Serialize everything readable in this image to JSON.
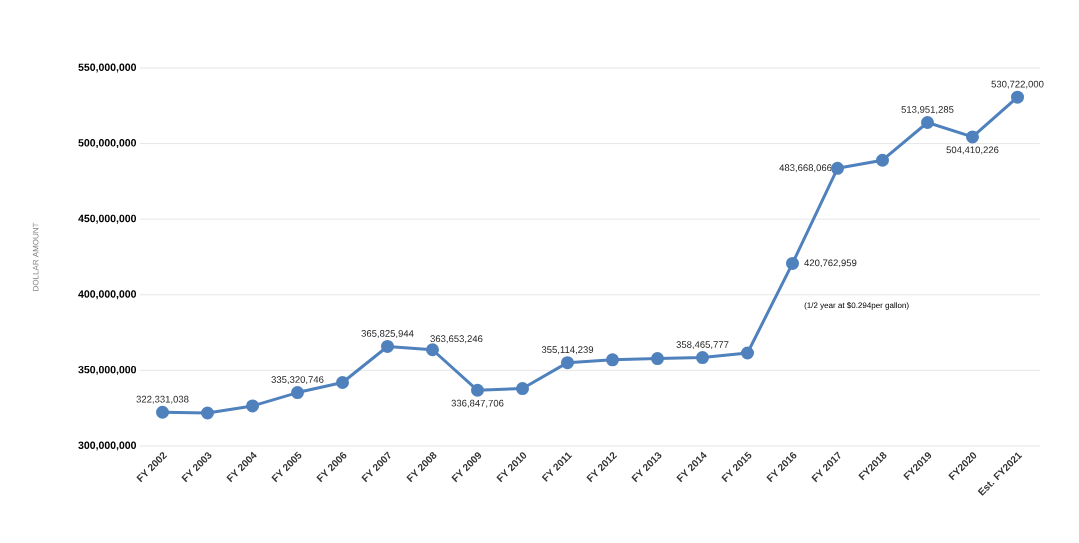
{
  "chart_data": {
    "type": "line",
    "ylabel": "DOLLAR AMOUNT",
    "categories": [
      "FY 2002",
      "FY 2003",
      "FY 2004",
      "FY 2005",
      "FY 2006",
      "FY 2007",
      "FY 2008",
      "FY 2009",
      "FY 2010",
      "FY 2011",
      "FY 2012",
      "FY 2013",
      "FY 2014",
      "FY 2015",
      "FY 2016",
      "FY 2017",
      "FY2018",
      "FY2019",
      "FY2020",
      "Est. FY2021"
    ],
    "values": [
      322331038,
      321800000,
      326500000,
      335320746,
      342000000,
      365825944,
      363653246,
      336847706,
      338000000,
      355114239,
      357000000,
      357800000,
      358465777,
      361500000,
      420762959,
      483668066,
      489000000,
      513951285,
      504410226,
      530722000
    ],
    "value_labels": [
      "322,331,038",
      null,
      null,
      "335,320,746",
      null,
      "365,825,944",
      "363,653,246",
      "336,847,706",
      null,
      "355,114,239",
      null,
      null,
      "358,465,777",
      null,
      "420,762,959",
      "483,668,066",
      null,
      "513,951,285",
      "504,410,226",
      "530,722,000"
    ],
    "color": "#4f81bd",
    "marker": "circle",
    "line_style": "solid",
    "grid": "y",
    "ylim": [
      300000000,
      550000000
    ],
    "yticks": [
      {
        "value": 300000000,
        "label": "300,000,000"
      },
      {
        "value": 350000000,
        "label": "350,000,000"
      },
      {
        "value": 400000000,
        "label": "400,000,000"
      },
      {
        "value": 450000000,
        "label": "450,000,000"
      },
      {
        "value": 500000000,
        "label": "500,000,000"
      },
      {
        "value": 550000000,
        "label": "550,000,000"
      }
    ],
    "annotations": [
      "(1/2 year at $0.294per gallon)"
    ]
  }
}
